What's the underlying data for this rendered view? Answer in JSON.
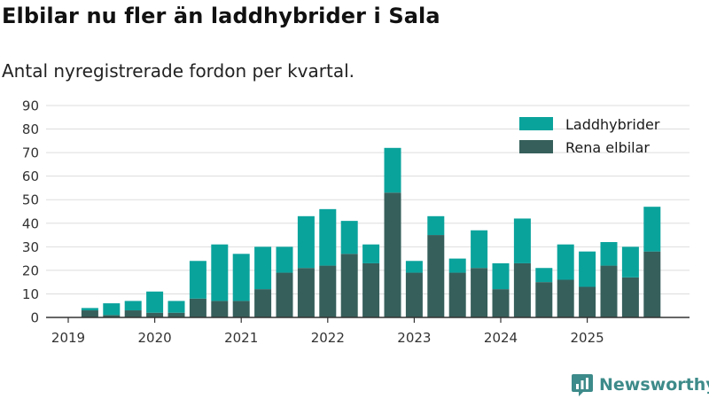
{
  "header": {
    "title": "Elbilar nu fler än laddhybrider i Sala",
    "subtitle": "Antal nyregistrerade fordon per kvartal."
  },
  "brand": {
    "name": "Newsworthy",
    "icon": "newsworthy-logo-icon"
  },
  "colors": {
    "phev": "#0aa39c",
    "ev": "#365f5b",
    "grid": "#dddddd",
    "axis": "#333333",
    "brand": "#3d8b8a"
  },
  "chart_data": {
    "type": "bar",
    "stacked": true,
    "ylim": [
      0,
      90
    ],
    "yticks": [
      0,
      10,
      20,
      30,
      40,
      50,
      60,
      70,
      80,
      90
    ],
    "grid": true,
    "legend_position": "top-right",
    "categories": [
      "2019-Q1",
      "2019-Q2",
      "2019-Q3",
      "2019-Q4",
      "2020-Q1",
      "2020-Q2",
      "2020-Q3",
      "2020-Q4",
      "2021-Q1",
      "2021-Q2",
      "2021-Q3",
      "2021-Q4",
      "2022-Q1",
      "2022-Q2",
      "2022-Q3",
      "2022-Q4",
      "2023-Q1",
      "2023-Q2",
      "2023-Q3",
      "2023-Q4",
      "2024-Q1",
      "2024-Q2",
      "2024-Q3",
      "2024-Q4",
      "2025-Q1",
      "2025-Q2",
      "2025-Q3",
      "2025-Q4"
    ],
    "xtick_labels": [
      "2019",
      "2020",
      "2021",
      "2022",
      "2023",
      "2024",
      "2025"
    ],
    "series": [
      {
        "name": "Rena elbilar",
        "color": "#365f5b",
        "values": [
          0,
          3,
          1,
          3,
          2,
          2,
          8,
          7,
          7,
          12,
          19,
          21,
          22,
          27,
          23,
          53,
          19,
          35,
          19,
          21,
          12,
          23,
          15,
          16,
          13,
          22,
          17,
          28
        ]
      },
      {
        "name": "Laddhybrider",
        "color": "#0aa39c",
        "values": [
          0,
          1,
          5,
          4,
          9,
          5,
          16,
          24,
          20,
          18,
          11,
          22,
          24,
          14,
          8,
          19,
          5,
          8,
          6,
          16,
          11,
          19,
          6,
          15,
          15,
          10,
          13,
          19
        ]
      }
    ],
    "legend": [
      "Laddhybrider",
      "Rena elbilar"
    ]
  }
}
